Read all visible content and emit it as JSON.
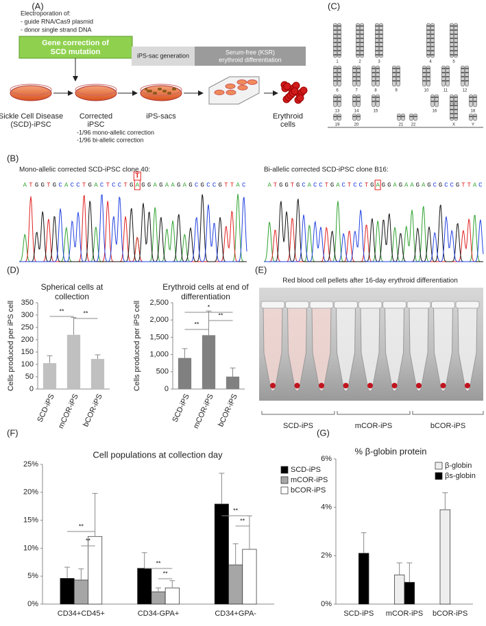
{
  "panel_a": {
    "label": "(A)",
    "electroporation": [
      "Electroporation of:",
      "- guide RNA/Cas9 plasmid",
      "- donor single strand DNA"
    ],
    "correction_box": [
      "Gene correction of",
      "SCD mutation"
    ],
    "stage_1": "iPS-sac generation",
    "stage_2": [
      "Serum-free (KSR)",
      "erythroid differentiation"
    ],
    "steps": [
      [
        "Sickle Cell Disease",
        "(SCD)-iPSC"
      ],
      [
        "Corrected",
        "iPSC"
      ],
      [
        "iPS-sacs"
      ],
      [
        "Erythroid",
        "cells"
      ]
    ],
    "correction_rates": [
      "-1/96 mono-allelic correction",
      "-1/96 bi-allelic correction"
    ]
  },
  "panel_b": {
    "label": "(B)",
    "clones": [
      {
        "title": "Mono-allelic corrected SCD-iPSC clone 40:",
        "marked": "T",
        "sequence": [
          "A",
          "T",
          "G",
          "G",
          "T",
          "G",
          "C",
          "A",
          "C",
          "C",
          "T",
          "G",
          "A",
          "C",
          "T",
          "C",
          "C",
          "T",
          "G",
          "A",
          "G",
          "G",
          "A",
          "G",
          "A",
          "A",
          "G",
          "A",
          "G",
          "C",
          "G",
          "C",
          "C",
          "G",
          "T",
          "T",
          "A",
          "C"
        ]
      },
      {
        "title": "Bi-allelic corrected SCD-iPSC clone B16:",
        "sequence": [
          "A",
          "T",
          "G",
          "G",
          "T",
          "G",
          "C",
          "A",
          "C",
          "C",
          "T",
          "G",
          "A",
          "C",
          "T",
          "C",
          "C",
          "T",
          "G",
          "A",
          "G",
          "G",
          "A",
          "G",
          "A",
          "A",
          "G",
          "A",
          "G",
          "C",
          "G",
          "C",
          "C",
          "G",
          "T",
          "T",
          "A",
          "C"
        ]
      }
    ]
  },
  "panel_c": {
    "label": "(C)",
    "chromosomes": [
      "1",
      "2",
      "3",
      "4",
      "5",
      "6",
      "7",
      "8",
      "9",
      "10",
      "11",
      "12",
      "13",
      "14",
      "15",
      "16",
      "17",
      "18",
      "19",
      "20",
      "21",
      "22",
      "X",
      "Y"
    ]
  },
  "panel_d": {
    "label": "(D)"
  },
  "panel_e": {
    "label": "(E)",
    "title": "Red blood cell pellets after 16-day erythroid differentiation",
    "groups": [
      "SCD-iPS",
      "mCOR-iPS",
      "bCOR-iPS"
    ]
  },
  "panel_f": {
    "label": "(F)"
  },
  "panel_g": {
    "label": "(G)"
  },
  "chart_data": [
    {
      "type": "bar",
      "title": [
        "Spherical cells at",
        "collection"
      ],
      "ylabel": "Cells produced per iPS cell",
      "categories": [
        "SCD-iPS",
        "mCOR-iPS",
        "bCOR-iPS"
      ],
      "values": [
        105,
        220,
        122
      ],
      "errors": [
        30,
        70,
        17
      ],
      "color": "#c0c0c0",
      "ylim": [
        0,
        350
      ],
      "yticks": [
        0,
        50,
        100,
        150,
        200,
        250,
        300,
        350
      ],
      "annotations": [
        "**",
        "**"
      ]
    },
    {
      "type": "bar",
      "title": [
        "Erythroid cells at end of",
        "differentiation"
      ],
      "ylabel": "Cells produced per iPS cell",
      "categories": [
        "SCD-iPS",
        "mCOR-iPS",
        "bCOR-iPS"
      ],
      "values": [
        900,
        1560,
        360
      ],
      "errors": [
        270,
        700,
        250
      ],
      "color": "#808080",
      "ylim": [
        0,
        2500
      ],
      "yticks": [
        0,
        500,
        {
          "value": 1000,
          "label": "1,000"
        },
        {
          "value": 1500,
          "label": "1,500"
        },
        {
          "value": 2000,
          "label": "2,000"
        },
        {
          "value": 2500,
          "label": "2,500"
        }
      ],
      "annotations": [
        "*",
        "**",
        "**"
      ]
    },
    {
      "type": "grouped-bar",
      "title": "Cell populations at collection day",
      "categories": [
        "CD34+CD45+",
        "CD34-GPA+",
        "CD34+GPA-"
      ],
      "series": [
        {
          "name": "SCD-iPS",
          "color": "#000000",
          "values": [
            4.6,
            6.4,
            17.9
          ],
          "errors": [
            2.0,
            2.8,
            5.5
          ]
        },
        {
          "name": "mCOR-iPS",
          "color": "#a6a6a6",
          "values": [
            4.3,
            2.2,
            7.0
          ],
          "errors": [
            2.0,
            0.7,
            3.8
          ]
        },
        {
          "name": "bCOR-iPS",
          "color": "#ffffff",
          "values": [
            12.1,
            2.9,
            9.8
          ],
          "errors": [
            7.7,
            1.3,
            6.0
          ]
        }
      ],
      "ylim": [
        0,
        25
      ],
      "yticks": [
        {
          "value": 0,
          "label": "0%"
        },
        {
          "value": 5,
          "label": "5%"
        },
        {
          "value": 10,
          "label": "10%"
        },
        {
          "value": 15,
          "label": "15%"
        },
        {
          "value": 20,
          "label": "20%"
        },
        {
          "value": 25,
          "label": "25%"
        }
      ],
      "annotations": [
        "**",
        "**",
        "**",
        "**",
        "**",
        "**"
      ],
      "legend": "right"
    },
    {
      "type": "grouped-bar",
      "title": "% β-globin protein",
      "categories": [
        "SCD-iPS",
        "mCOR-iPS",
        "bCOR-iPS"
      ],
      "series": [
        {
          "name": "β-globin",
          "color": "#eeeeee",
          "values": [
            null,
            1.2,
            3.9
          ],
          "errors": [
            null,
            0.5,
            0.7
          ]
        },
        {
          "name": "βs-globin",
          "color": "#000000",
          "values": [
            2.1,
            0.9,
            null
          ],
          "errors": [
            0.85,
            0.8,
            null
          ]
        }
      ],
      "ylim": [
        0,
        6
      ],
      "yticks": [
        {
          "value": 0,
          "label": "0%"
        },
        {
          "value": 2,
          "label": "2%"
        },
        {
          "value": 4,
          "label": "4%"
        },
        {
          "value": 6,
          "label": "6%"
        }
      ],
      "legend": "top-right"
    }
  ]
}
